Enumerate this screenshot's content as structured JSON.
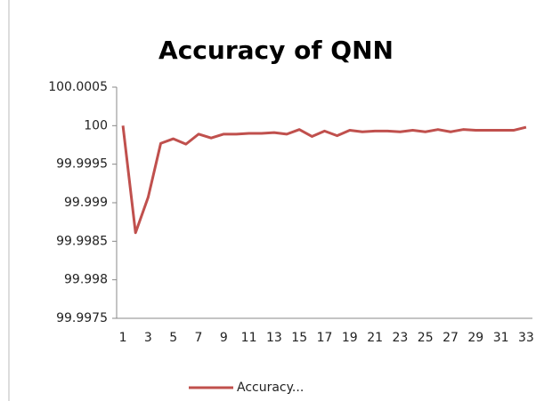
{
  "chart_data": {
    "type": "line",
    "title": "Accuracy of QNN",
    "categories": [
      1,
      null,
      3,
      null,
      5,
      null,
      7,
      null,
      9,
      null,
      11,
      null,
      13,
      null,
      15,
      null,
      17,
      null,
      19,
      null,
      21,
      null,
      23,
      null,
      25,
      null,
      27,
      null,
      29,
      null,
      31,
      null,
      33
    ],
    "series": [
      {
        "name": "Accuracy...",
        "color": "#c0504d",
        "values": [
          100,
          99.99861,
          99.99907,
          99.99977,
          99.99983,
          99.99976,
          99.99989,
          99.99984,
          99.99989,
          99.99989,
          99.9999,
          99.9999,
          99.99991,
          99.99989,
          99.99995,
          99.99986,
          99.99993,
          99.99987,
          99.99994,
          99.99992,
          99.99993,
          99.99993,
          99.99992,
          99.99994,
          99.99992,
          99.99995,
          99.99992,
          99.99995,
          99.99994,
          99.99994,
          99.99994,
          99.99994,
          99.99998
        ]
      }
    ],
    "ylim": [
      99.9975,
      100.0005
    ],
    "yticks": [
      99.9975,
      99.998,
      99.9985,
      99.999,
      99.9995,
      100,
      100.0005
    ],
    "grid": false,
    "legend": "bottom"
  }
}
